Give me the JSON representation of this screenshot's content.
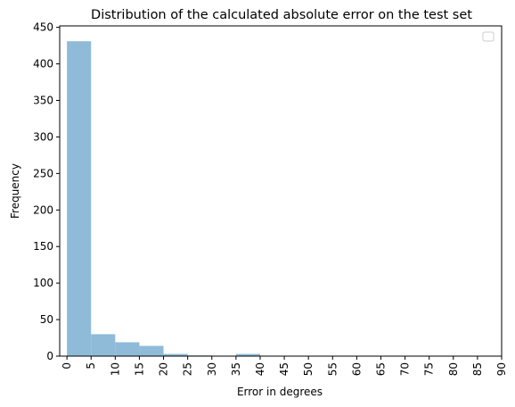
{
  "chart_data": {
    "type": "bar",
    "title": "Distribution of the calculated absolute error on the test set",
    "xlabel": "Error in degrees",
    "ylabel": "Frequency",
    "xlim": [
      -1.5,
      90
    ],
    "ylim": [
      0,
      452
    ],
    "x_ticks": [
      "0",
      "5",
      "10",
      "15",
      "20",
      "25",
      "30",
      "35",
      "40",
      "45",
      "50",
      "55",
      "60",
      "65",
      "70",
      "75",
      "80",
      "85",
      "90"
    ],
    "y_ticks": [
      "0",
      "50",
      "100",
      "150",
      "200",
      "250",
      "300",
      "350",
      "400",
      "450"
    ],
    "bins": [
      {
        "start": 0,
        "end": 5,
        "value": 431
      },
      {
        "start": 5,
        "end": 10,
        "value": 30
      },
      {
        "start": 10,
        "end": 15,
        "value": 19
      },
      {
        "start": 15,
        "end": 20,
        "value": 14
      },
      {
        "start": 20,
        "end": 25,
        "value": 3
      },
      {
        "start": 25,
        "end": 30,
        "value": 1
      },
      {
        "start": 30,
        "end": 35,
        "value": 0
      },
      {
        "start": 35,
        "end": 40,
        "value": 3
      }
    ],
    "bar_color": "#8fbbd9",
    "legend": "top-right (empty)",
    "grid": false
  }
}
